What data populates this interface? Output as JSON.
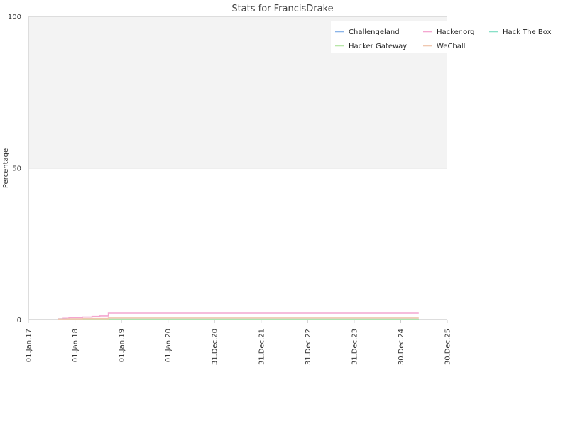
{
  "chart_data": {
    "type": "line",
    "title": "Stats for FrancisDrake",
    "xlabel": "",
    "ylabel": "Percentage",
    "ylim": [
      0,
      100
    ],
    "y_ticks": [
      "0",
      "50",
      "100"
    ],
    "x_ticks": [
      {
        "label": "01.Jan.17",
        "date": "2017-01-01"
      },
      {
        "label": "01.Jan.18",
        "date": "2018-01-01"
      },
      {
        "label": "01.Jan.19",
        "date": "2019-01-01"
      },
      {
        "label": "01.Jan.20",
        "date": "2020-01-01"
      },
      {
        "label": "31.Dec.20",
        "date": "2020-12-31"
      },
      {
        "label": "31.Dec.21",
        "date": "2021-12-31"
      },
      {
        "label": "31.Dec.22",
        "date": "2022-12-31"
      },
      {
        "label": "31.Dec.23",
        "date": "2023-12-31"
      },
      {
        "label": "30.Dec.24",
        "date": "2024-12-30"
      },
      {
        "label": "30.Dec.25",
        "date": "2025-12-30"
      }
    ],
    "xlim": [
      "2017-01-01",
      "2025-12-30"
    ],
    "grid": true,
    "legend_position": "top-right",
    "series": [
      {
        "name": "Challengeland",
        "color": "#8ab4e8",
        "step": true,
        "points": [
          [
            "2017-08-20",
            0.0
          ],
          [
            "2025-05-20",
            0.0
          ]
        ]
      },
      {
        "name": "Hacker.org",
        "color": "#f4a6d0",
        "step": true,
        "points": [
          [
            "2017-08-20",
            0.2
          ],
          [
            "2017-10-01",
            0.4
          ],
          [
            "2017-11-15",
            0.6
          ],
          [
            "2018-03-01",
            0.8
          ],
          [
            "2018-05-15",
            1.0
          ],
          [
            "2018-07-15",
            1.2
          ],
          [
            "2018-09-20",
            2.1
          ],
          [
            "2025-05-20",
            2.1
          ]
        ]
      },
      {
        "name": "Hack The Box",
        "color": "#88e0c8",
        "step": true,
        "points": [
          [
            "2017-08-20",
            0.1
          ],
          [
            "2025-05-20",
            0.1
          ]
        ]
      },
      {
        "name": "Hacker Gateway",
        "color": "#b8e6a8",
        "step": true,
        "points": [
          [
            "2017-08-20",
            0.0
          ],
          [
            "2025-05-20",
            0.0
          ]
        ]
      },
      {
        "name": "WeChall",
        "color": "#f0c8b0",
        "step": true,
        "points": [
          [
            "2017-08-20",
            0.1
          ],
          [
            "2017-11-01",
            0.2
          ],
          [
            "2018-03-01",
            0.3
          ],
          [
            "2018-09-20",
            0.5
          ],
          [
            "2025-05-20",
            0.5
          ]
        ]
      }
    ]
  }
}
